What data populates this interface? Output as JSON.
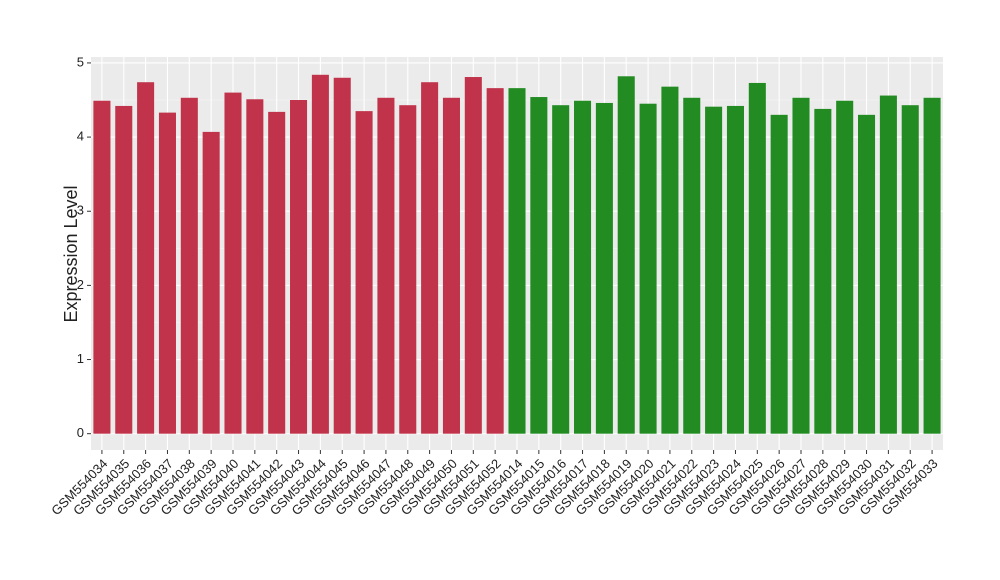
{
  "chart_data": {
    "type": "bar",
    "y_label": "Expression Level",
    "categories": [
      "GSM554034",
      "GSM554035",
      "GSM554036",
      "GSM554037",
      "GSM554038",
      "GSM554039",
      "GSM554040",
      "GSM554041",
      "GSM554042",
      "GSM554043",
      "GSM554044",
      "GSM554045",
      "GSM554046",
      "GSM554047",
      "GSM554048",
      "GSM554049",
      "GSM554050",
      "GSM554051",
      "GSM554052",
      "GSM554014",
      "GSM554015",
      "GSM554016",
      "GSM554017",
      "GSM554018",
      "GSM554019",
      "GSM554020",
      "GSM554021",
      "GSM554022",
      "GSM554023",
      "GSM554024",
      "GSM554025",
      "GSM554026",
      "GSM554027",
      "GSM554028",
      "GSM554029",
      "GSM554030",
      "GSM554031",
      "GSM554032",
      "GSM554033"
    ],
    "values": [
      4.49,
      4.42,
      4.74,
      4.33,
      4.53,
      4.07,
      4.6,
      4.51,
      4.34,
      4.5,
      4.84,
      4.8,
      4.35,
      4.53,
      4.43,
      4.74,
      4.53,
      4.81,
      4.66,
      4.66,
      4.54,
      4.43,
      4.49,
      4.46,
      4.82,
      4.45,
      4.68,
      4.53,
      4.41,
      4.42,
      4.73,
      4.3,
      4.53,
      4.38,
      4.49,
      4.3,
      4.56,
      4.43,
      4.53
    ],
    "colors": [
      "#c0334a",
      "#c0334a",
      "#c0334a",
      "#c0334a",
      "#c0334a",
      "#c0334a",
      "#c0334a",
      "#c0334a",
      "#c0334a",
      "#c0334a",
      "#c0334a",
      "#c0334a",
      "#c0334a",
      "#c0334a",
      "#c0334a",
      "#c0334a",
      "#c0334a",
      "#c0334a",
      "#c0334a",
      "#228b22",
      "#228b22",
      "#228b22",
      "#228b22",
      "#228b22",
      "#228b22",
      "#228b22",
      "#228b22",
      "#228b22",
      "#228b22",
      "#228b22",
      "#228b22",
      "#228b22",
      "#228b22",
      "#228b22",
      "#228b22",
      "#228b22",
      "#228b22",
      "#228b22",
      "#228b22"
    ],
    "ylim": [
      -0.22,
      5.08
    ],
    "yticks": [
      0,
      1,
      2,
      3,
      4,
      5
    ],
    "grid": true
  }
}
